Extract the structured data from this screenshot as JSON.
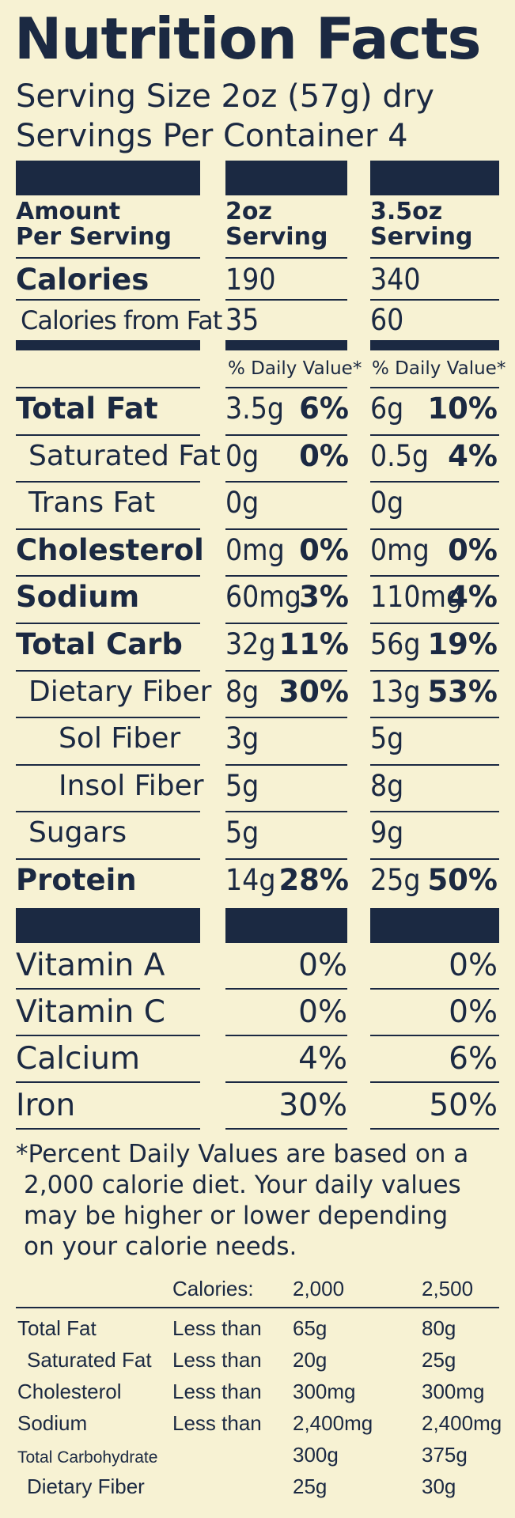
{
  "title": "Nutrition Facts",
  "serving_size": "Serving Size 2oz (57g) dry",
  "servings_per_container": "Servings Per Container 4",
  "header": {
    "amount_line1": "Amount",
    "amount_line2": "Per Serving",
    "col1_line1": "2oz",
    "col1_line2": "Serving",
    "col2_line1": "3.5oz",
    "col2_line2": "Serving"
  },
  "calories": {
    "label": "Calories",
    "col1": "190",
    "col2": "340"
  },
  "calories_from_fat": {
    "label": "Calories from Fat",
    "col1": "35",
    "col2": "60"
  },
  "dv_header": {
    "col1": "% Daily Value*",
    "col2": "% Daily Value*"
  },
  "nutrients": [
    {
      "label": "Total Fat",
      "bold": true,
      "indent": 0,
      "col1_amt": "3.5g",
      "col1_pct": "6%",
      "col2_amt": "6g",
      "col2_pct": "10%"
    },
    {
      "label": "Saturated Fat",
      "bold": false,
      "indent": 1,
      "col1_amt": "0g",
      "col1_pct": "0%",
      "col2_amt": "0.5g",
      "col2_pct": "4%"
    },
    {
      "label": "Trans Fat",
      "bold": false,
      "indent": 1,
      "col1_amt": "0g",
      "col1_pct": "",
      "col2_amt": "0g",
      "col2_pct": ""
    },
    {
      "label": "Cholesterol",
      "bold": true,
      "indent": 0,
      "col1_amt": "0mg",
      "col1_pct": "0%",
      "col2_amt": "0mg",
      "col2_pct": "0%"
    },
    {
      "label": "Sodium",
      "bold": true,
      "indent": 0,
      "col1_amt": "60mg",
      "col1_pct": "3%",
      "col2_amt": "110mg",
      "col2_pct": "4%"
    },
    {
      "label": "Total Carb",
      "bold": true,
      "indent": 0,
      "col1_amt": "32g",
      "col1_pct": "11%",
      "col2_amt": "56g",
      "col2_pct": "19%"
    },
    {
      "label": "Dietary Fiber",
      "bold": false,
      "indent": 1,
      "col1_amt": "8g",
      "col1_pct": "30%",
      "col2_amt": "13g",
      "col2_pct": "53%"
    },
    {
      "label": "Sol Fiber",
      "bold": false,
      "indent": 2,
      "col1_amt": "3g",
      "col1_pct": "",
      "col2_amt": "5g",
      "col2_pct": ""
    },
    {
      "label": "Insol Fiber",
      "bold": false,
      "indent": 2,
      "col1_amt": "5g",
      "col1_pct": "",
      "col2_amt": "8g",
      "col2_pct": ""
    },
    {
      "label": "Sugars",
      "bold": false,
      "indent": 1,
      "col1_amt": "5g",
      "col1_pct": "",
      "col2_amt": "9g",
      "col2_pct": ""
    },
    {
      "label": "Protein",
      "bold": true,
      "indent": 0,
      "col1_amt": "14g",
      "col1_pct": "28%",
      "col2_amt": "25g",
      "col2_pct": "50%"
    }
  ],
  "vitamins": [
    {
      "label": "Vitamin A",
      "col1": "0%",
      "col2": "0%"
    },
    {
      "label": "Vitamin C",
      "col1": "0%",
      "col2": "0%"
    },
    {
      "label": "Calcium",
      "col1": "4%",
      "col2": "6%"
    },
    {
      "label": "Iron",
      "col1": "30%",
      "col2": "50%"
    }
  ],
  "footnote": [
    "*Percent Daily Values are based on a",
    "2,000 calorie diet. Your daily values",
    "may be higher or lower depending",
    "on your calorie needs."
  ],
  "dv_table": {
    "header": {
      "label": "Calories:",
      "col1": "2,000",
      "col2": "2,500"
    },
    "rows": [
      {
        "name": "Total Fat",
        "qual": "Less than",
        "col1": "65g",
        "col2": "80g",
        "small": false,
        "indent": false
      },
      {
        "name": "Saturated Fat",
        "qual": "Less than",
        "col1": "20g",
        "col2": "25g",
        "small": false,
        "indent": true
      },
      {
        "name": "Cholesterol",
        "qual": "Less than",
        "col1": "300mg",
        "col2": "300mg",
        "small": false,
        "indent": false
      },
      {
        "name": "Sodium",
        "qual": "Less than",
        "col1": "2,400mg",
        "col2": "2,400mg",
        "small": false,
        "indent": false
      },
      {
        "name": "Total Carbohydrate",
        "qual": "",
        "col1": "300g",
        "col2": "375g",
        "small": true,
        "indent": false
      },
      {
        "name": "Dietary Fiber",
        "qual": "",
        "col1": "25g",
        "col2": "30g",
        "small": false,
        "indent": true
      }
    ]
  },
  "colors": {
    "ink": "#1b2942",
    "paper": "#f7f2d3"
  }
}
